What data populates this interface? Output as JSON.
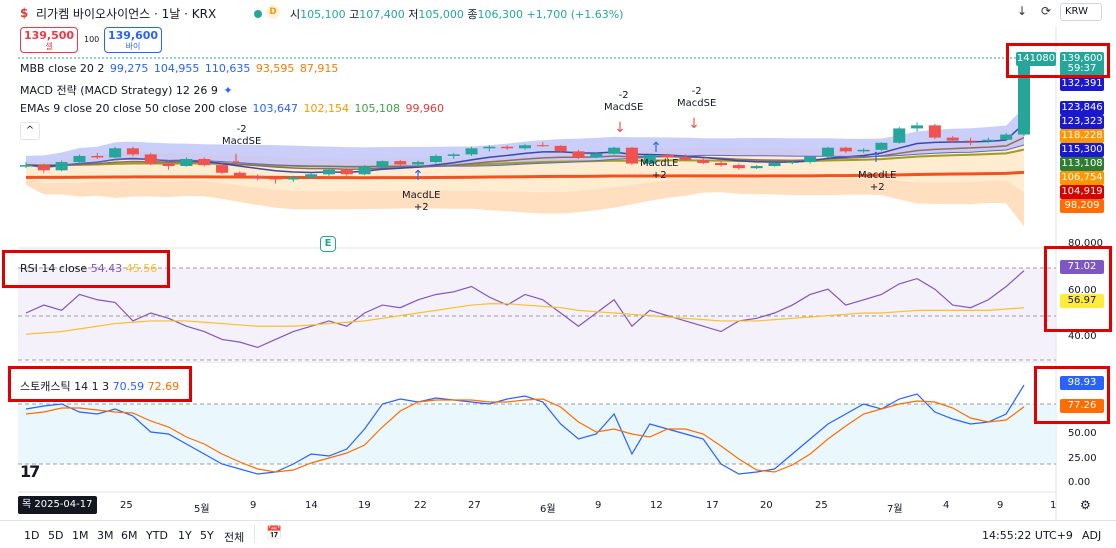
{
  "header": {
    "title": "리가켐 바이오사이언스 · 1날 · KRX",
    "ohlc": {
      "open_label": "시",
      "open": "105,100",
      "high_label": "고",
      "high": "107,400",
      "low_label": "저",
      "low": "105,000",
      "close_label": "종",
      "close": "106,300",
      "change": "+1,700 (+1.63%)"
    },
    "d_badge": "D",
    "currency": "KRW"
  },
  "trade": {
    "sell_price": "139,500",
    "sell_label": "셀",
    "spread": "100",
    "buy_price": "139,600",
    "buy_label": "바이"
  },
  "legends": {
    "mbb": {
      "name": "MBB close 20 2",
      "v1": "99,275",
      "v2": "104,955",
      "v3": "110,635",
      "v4": "93,595",
      "v5": "87,915"
    },
    "macd": {
      "name": "MACD 전략 (MACD Strategy) 12 26 9"
    },
    "emas": {
      "name": "EMAs 9 close 20 close 50 close 200 close",
      "v1": "103,647",
      "v2": "102,154",
      "v3": "105,108",
      "v4": "99,960"
    }
  },
  "price_labels": {
    "ask": "141080",
    "last": "139,600",
    "countdown": "59:37",
    "l1": "132,391",
    "l2": "123,846",
    "l3": "123,323",
    "l4": "118,228",
    "l5": "115,300",
    "l6": "113,108",
    "l7": "106,754",
    "l8": "104,919",
    "l9": "98,209",
    "axis_80000": "80,000"
  },
  "signals": {
    "s1": {
      "count": "-2",
      "name": "MacdSE"
    },
    "s2": {
      "count": "-2",
      "name": "MacdSE"
    },
    "s3": {
      "count": "-2",
      "name": "MacdSE"
    },
    "l1": {
      "name": "MacdLE",
      "count": "+2"
    },
    "l2": {
      "name": "MacdLE",
      "count": "+2"
    },
    "l3": {
      "name": "MacdLE",
      "count": "+2"
    }
  },
  "rsi": {
    "name": "RSI 14 close",
    "v1": "54.43",
    "v2": "45.56",
    "label_rsi": "71.02",
    "label_ma": "56.97",
    "axis": [
      "60.00",
      "40.00"
    ]
  },
  "stoch": {
    "name": "스토캐스틱 14 1 3",
    "k": "70.59",
    "d": "72.69",
    "label_k": "98.93",
    "label_d": "77.26",
    "axis": [
      "50.00",
      "25.00",
      "0.00"
    ]
  },
  "xaxis": {
    "highlight": "목 2025-04-17",
    "ticks": [
      "25",
      "5월",
      "9",
      "14",
      "19",
      "22",
      "27",
      "6월",
      "9",
      "12",
      "17",
      "20",
      "25",
      "7월",
      "4",
      "9",
      "1"
    ]
  },
  "bottom": {
    "ranges": [
      "1D",
      "5D",
      "1M",
      "3M",
      "6M",
      "YTD",
      "1Y",
      "5Y",
      "전체"
    ],
    "time": "14:55:22 UTC+9",
    "adj": "ADJ"
  },
  "colors": {
    "up": "#26a69a",
    "down": "#ef5350",
    "mbb_upper_fill": "#9fa8f5",
    "mbb_lower_fill": "#ffc994",
    "rsi": "#7e57c2",
    "rsi_ma": "#fbc02d",
    "stoch_k": "#2962ff",
    "stoch_d": "#ff6d00"
  },
  "chart_data": {
    "type": "candlestick",
    "candles": [
      [
        104000,
        105500,
        103500,
        104500
      ],
      [
        104500,
        105000,
        102000,
        102800
      ],
      [
        102800,
        106000,
        102500,
        105500
      ],
      [
        105500,
        108000,
        105000,
        107500
      ],
      [
        107500,
        108500,
        106500,
        107000
      ],
      [
        107000,
        110500,
        106800,
        110000
      ],
      [
        110000,
        110500,
        107500,
        108000
      ],
      [
        108000,
        108500,
        104500,
        105000
      ],
      [
        105000,
        106000,
        103000,
        104200
      ],
      [
        104200,
        107000,
        104000,
        106500
      ],
      [
        106500,
        107000,
        104000,
        104500
      ],
      [
        104500,
        105500,
        101500,
        102000
      ],
      [
        102000,
        102500,
        100500,
        101000
      ],
      [
        101000,
        101500,
        99500,
        100200
      ],
      [
        100200,
        100800,
        98500,
        99800
      ],
      [
        99800,
        101000,
        99000,
        100500
      ],
      [
        100500,
        102000,
        100000,
        101500
      ],
      [
        101500,
        103500,
        101000,
        103000
      ],
      [
        103000,
        103500,
        101000,
        101500
      ],
      [
        101500,
        104500,
        101200,
        104000
      ],
      [
        104000,
        106000,
        103500,
        105800
      ],
      [
        105800,
        106200,
        104200,
        104700
      ],
      [
        104700,
        106000,
        104000,
        105500
      ],
      [
        105500,
        108000,
        105000,
        107500
      ],
      [
        107500,
        108500,
        106500,
        108000
      ],
      [
        108000,
        110500,
        107500,
        110000
      ],
      [
        110000,
        111000,
        109000,
        110500
      ],
      [
        110500,
        111000,
        109500,
        110000
      ],
      [
        110000,
        111500,
        109500,
        111000
      ],
      [
        111000,
        112000,
        110500,
        110800
      ],
      [
        110800,
        111000,
        108500,
        109000
      ],
      [
        109000,
        109500,
        106500,
        107000
      ],
      [
        107000,
        108500,
        106800,
        108200
      ],
      [
        108200,
        110500,
        108000,
        110200
      ],
      [
        110200,
        110500,
        104500,
        105000
      ],
      [
        105000,
        108000,
        104800,
        107800
      ],
      [
        107800,
        108200,
        106500,
        107000
      ],
      [
        107000,
        108000,
        105800,
        106200
      ],
      [
        106200,
        106800,
        104800,
        105200
      ],
      [
        105200,
        106000,
        104000,
        104500
      ],
      [
        104500,
        105000,
        103000,
        103500
      ],
      [
        103500,
        104500,
        103200,
        104200
      ],
      [
        104200,
        105500,
        104000,
        105200
      ],
      [
        105200,
        106000,
        104800,
        105500
      ],
      [
        105500,
        107500,
        105000,
        107300
      ],
      [
        107300,
        110500,
        107000,
        110200
      ],
      [
        110200,
        110500,
        108500,
        109000
      ],
      [
        109000,
        110000,
        108500,
        109500
      ],
      [
        109500,
        112000,
        109000,
        111800
      ],
      [
        111800,
        117000,
        111500,
        116500
      ],
      [
        116500,
        118500,
        115500,
        117500
      ],
      [
        117500,
        118000,
        113000,
        113500
      ],
      [
        113500,
        114000,
        112000,
        112500
      ],
      [
        112500,
        113500,
        111000,
        112300
      ],
      [
        112300,
        113500,
        111800,
        112800
      ],
      [
        112800,
        115000,
        112500,
        114500
      ],
      [
        114500,
        141080,
        114000,
        139600
      ]
    ],
    "rsi": [
      55,
      58,
      56,
      62,
      60,
      59,
      52,
      55,
      53,
      50,
      48,
      45,
      44,
      42,
      45,
      48,
      50,
      52,
      50,
      55,
      58,
      57,
      60,
      62,
      63,
      65,
      61,
      58,
      62,
      60,
      55,
      50,
      55,
      60,
      50,
      56,
      54,
      52,
      50,
      48,
      52,
      53,
      55,
      58,
      62,
      64,
      58,
      60,
      62,
      66,
      68,
      64,
      58,
      57,
      60,
      65,
      71
    ],
    "rsi_ma": [
      47,
      47.5,
      48,
      49,
      50,
      51,
      51.5,
      52,
      52,
      52,
      51.5,
      51,
      50.5,
      50,
      50,
      50,
      50.5,
      51,
      51.5,
      52,
      53,
      54,
      55,
      56,
      57,
      58,
      58.5,
      58.5,
      58,
      57.5,
      57,
      56,
      55.5,
      55,
      54.5,
      54,
      53.5,
      53,
      52.5,
      52,
      52,
      52,
      52.5,
      53,
      53.5,
      54,
      54.5,
      55,
      55,
      55.5,
      56,
      56,
      56,
      56,
      56,
      56.5,
      56.97
    ],
    "stoch_k": [
      75,
      78,
      80,
      72,
      70,
      75,
      68,
      52,
      50,
      40,
      30,
      20,
      15,
      10,
      12,
      20,
      30,
      28,
      35,
      55,
      80,
      85,
      82,
      86,
      84,
      82,
      80,
      85,
      88,
      82,
      60,
      45,
      50,
      70,
      30,
      60,
      55,
      50,
      45,
      20,
      10,
      12,
      15,
      30,
      45,
      60,
      70,
      80,
      75,
      85,
      90,
      72,
      65,
      60,
      62,
      70,
      98.93
    ],
    "stoch_d": [
      70,
      72,
      76,
      76,
      74,
      72,
      71,
      63,
      57,
      47,
      40,
      30,
      22,
      15,
      12,
      14,
      21,
      26,
      31,
      39,
      57,
      73,
      82,
      84,
      84,
      84,
      82,
      82,
      84,
      85,
      77,
      62,
      52,
      55,
      50,
      47,
      55,
      55,
      50,
      38,
      25,
      14,
      12,
      19,
      30,
      45,
      58,
      70,
      75,
      80,
      83,
      82,
      76,
      66,
      62,
      64,
      77.26
    ]
  }
}
